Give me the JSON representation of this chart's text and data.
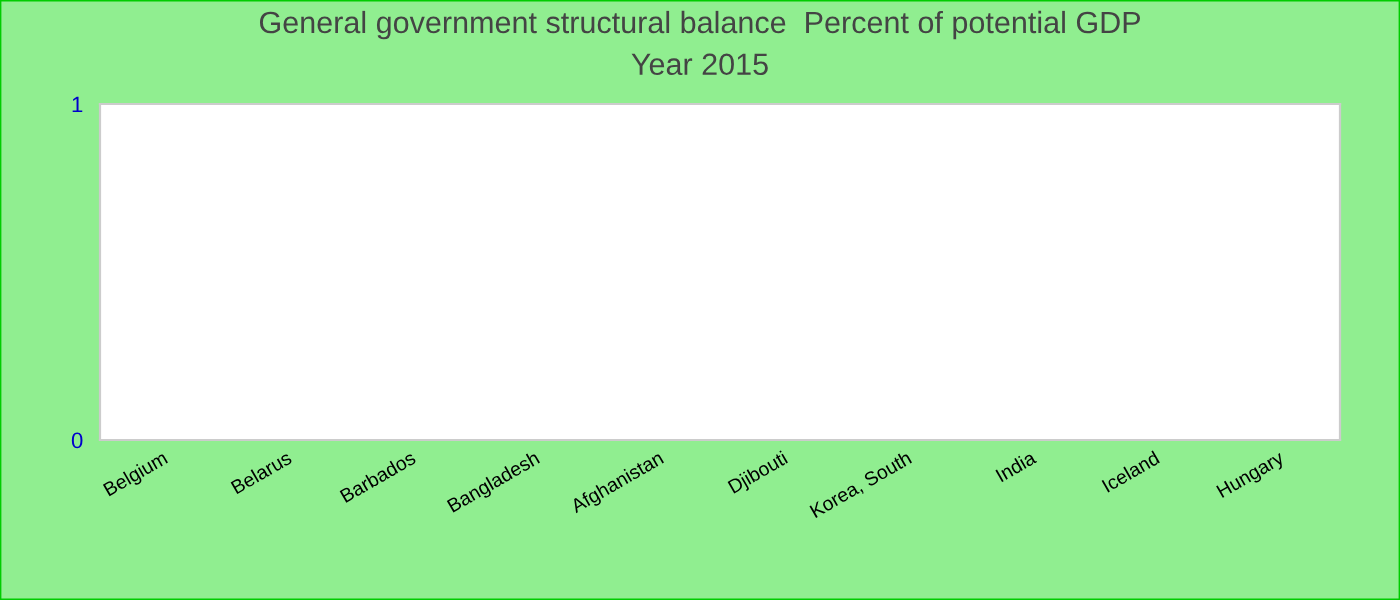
{
  "chart_data": {
    "type": "bar",
    "title": "General government structural balance  Percent of potential GDP\nYear 2015",
    "categories": [
      "Belgium",
      "Belarus",
      "Barbados",
      "Bangladesh",
      "Afghanistan",
      "Djibouti",
      "Korea, South",
      "India",
      "Iceland",
      "Hungary"
    ],
    "values": [
      0,
      0,
      0,
      0,
      0,
      0,
      0,
      0,
      0,
      0
    ],
    "ylim": [
      0,
      1
    ],
    "yticks": [
      0,
      1
    ],
    "grid": false,
    "legend": false
  }
}
